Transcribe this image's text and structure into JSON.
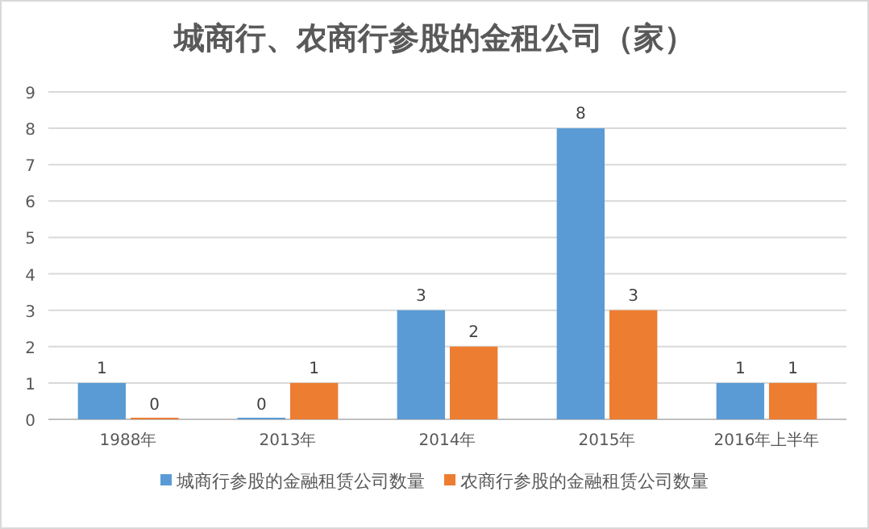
{
  "chart_data": {
    "type": "bar",
    "title": "城商行、农商行参股的金租公司（家）",
    "categories": [
      "1988年",
      "2013年",
      "2014年",
      "2015年",
      "2016年上半年"
    ],
    "series": [
      {
        "name": "城商行参股的金融租赁公司数量",
        "color": "#5b9bd5",
        "values": [
          1,
          0,
          3,
          8,
          1
        ]
      },
      {
        "name": "农商行参股的金融租赁公司数量",
        "color": "#ed7d31",
        "values": [
          0,
          1,
          2,
          3,
          1
        ]
      }
    ],
    "ylim": [
      0,
      9
    ],
    "yticks": [
      0,
      1,
      2,
      3,
      4,
      5,
      6,
      7,
      8,
      9
    ],
    "grid": "y",
    "legend": "bottom",
    "data_labels": true
  }
}
